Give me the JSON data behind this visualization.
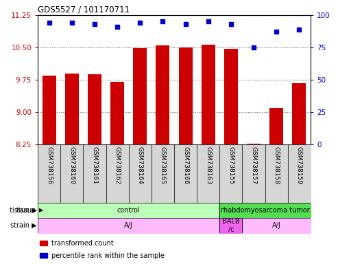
{
  "title": "GDS5527 / 101170711",
  "samples": [
    "GSM738156",
    "GSM738160",
    "GSM738161",
    "GSM738162",
    "GSM738164",
    "GSM738165",
    "GSM738166",
    "GSM738163",
    "GSM738155",
    "GSM738157",
    "GSM738158",
    "GSM738159"
  ],
  "bar_values": [
    9.85,
    9.9,
    9.87,
    9.7,
    10.48,
    10.55,
    10.5,
    10.57,
    10.47,
    8.27,
    9.1,
    9.67
  ],
  "percentile_values": [
    94,
    94,
    93,
    91,
    94,
    95,
    93,
    95,
    93,
    75,
    87,
    89
  ],
  "ylim_left": [
    8.25,
    11.25
  ],
  "ylim_right": [
    0,
    100
  ],
  "yticks_left": [
    8.25,
    9.0,
    9.75,
    10.5,
    11.25
  ],
  "yticks_right": [
    0,
    25,
    50,
    75,
    100
  ],
  "bar_color": "#cc0000",
  "dot_color": "#0000cc",
  "tissue_groups": [
    {
      "label": "control",
      "start": 0,
      "end": 8,
      "color": "#bbffbb"
    },
    {
      "label": "rhabdomyosarcoma tumor",
      "start": 8,
      "end": 12,
      "color": "#55dd55"
    }
  ],
  "strain_groups": [
    {
      "label": "A/J",
      "start": 0,
      "end": 8,
      "color": "#ffbbff"
    },
    {
      "label": "BALB\n/c",
      "start": 8,
      "end": 9,
      "color": "#ee66ee"
    },
    {
      "label": "A/J",
      "start": 9,
      "end": 12,
      "color": "#ffbbff"
    }
  ],
  "grid_color": "#555555",
  "label_color_left": "#cc0000",
  "label_color_right": "#0000cc",
  "sample_bg_color": "#cccccc"
}
